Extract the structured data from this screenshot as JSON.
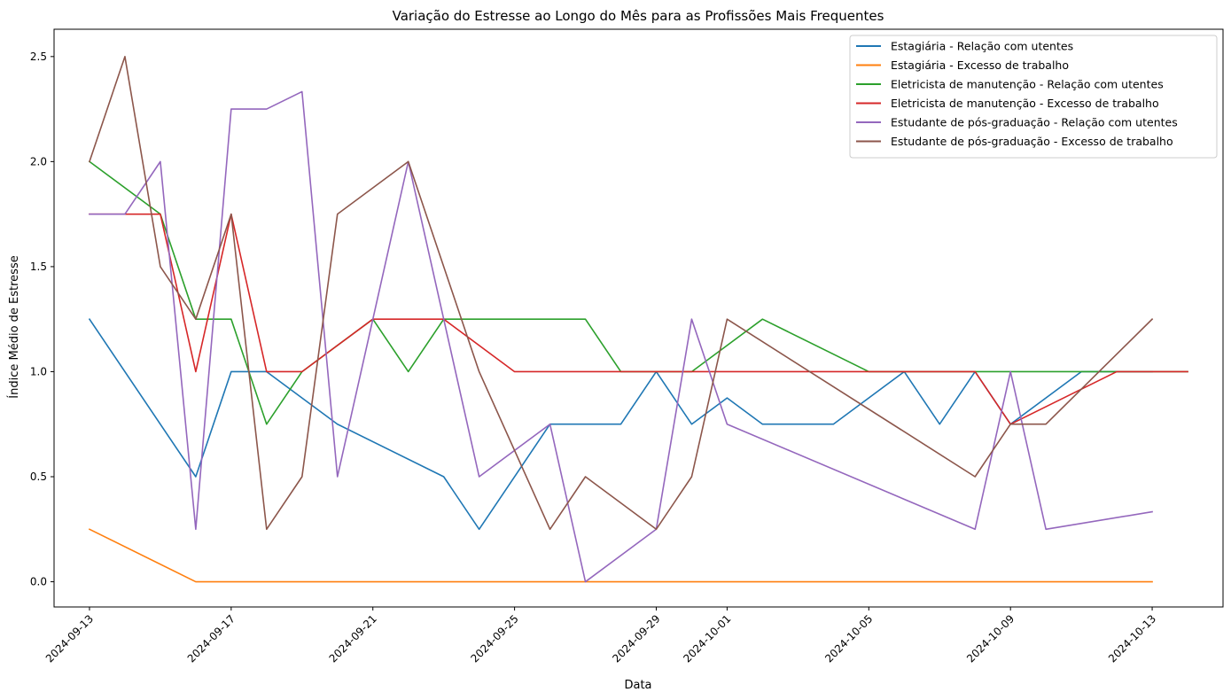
{
  "chart_data": {
    "type": "line",
    "title": "Variação do Estresse ao Longo do Mês para as Profissões Mais Frequentes",
    "xlabel": "Data",
    "ylabel": "Índice Médio de Estresse",
    "xlim": [
      "2024-09-12",
      "2024-10-15"
    ],
    "ylim": [
      -0.12,
      2.63
    ],
    "x_ticks": [
      "2024-09-13",
      "2024-09-17",
      "2024-09-21",
      "2024-09-25",
      "2024-09-29",
      "2024-10-01",
      "2024-10-05",
      "2024-10-09",
      "2024-10-13"
    ],
    "y_ticks": [
      0.0,
      0.5,
      1.0,
      1.5,
      2.0,
      2.5
    ],
    "y_tick_labels": [
      "0.0",
      "0.5",
      "1.0",
      "1.5",
      "2.0",
      "2.5"
    ],
    "grid": false,
    "legend_position": "top-right",
    "series": [
      {
        "name": "Estagiária - Relação com utentes",
        "color": "#1f77b4",
        "points": [
          [
            "2024-09-13",
            1.25
          ],
          [
            "2024-09-16",
            0.5
          ],
          [
            "2024-09-17",
            1.0
          ],
          [
            "2024-09-18",
            1.0
          ],
          [
            "2024-09-20",
            0.75
          ],
          [
            "2024-09-23",
            0.5
          ],
          [
            "2024-09-24",
            0.25
          ],
          [
            "2024-09-26",
            0.75
          ],
          [
            "2024-09-28",
            0.75
          ],
          [
            "2024-09-29",
            1.0
          ],
          [
            "2024-09-30",
            0.75
          ],
          [
            "2024-10-01",
            0.875
          ],
          [
            "2024-10-02",
            0.75
          ],
          [
            "2024-10-04",
            0.75
          ],
          [
            "2024-10-06",
            1.0
          ],
          [
            "2024-10-07",
            0.75
          ],
          [
            "2024-10-08",
            1.0
          ],
          [
            "2024-10-09",
            0.75
          ],
          [
            "2024-10-11",
            1.0
          ],
          [
            "2024-10-13",
            1.0
          ]
        ]
      },
      {
        "name": "Estagiária - Excesso de trabalho",
        "color": "#ff7f0e",
        "points": [
          [
            "2024-09-13",
            0.25
          ],
          [
            "2024-09-16",
            0.0
          ],
          [
            "2024-10-13",
            0.0
          ]
        ]
      },
      {
        "name": "Eletricista de manutenção  - Relação com utentes",
        "color": "#2ca02c",
        "points": [
          [
            "2024-09-13",
            2.0
          ],
          [
            "2024-09-15",
            1.75
          ],
          [
            "2024-09-16",
            1.25
          ],
          [
            "2024-09-17",
            1.25
          ],
          [
            "2024-09-18",
            0.75
          ],
          [
            "2024-09-19",
            1.0
          ],
          [
            "2024-09-21",
            1.25
          ],
          [
            "2024-09-22",
            1.0
          ],
          [
            "2024-09-23",
            1.25
          ],
          [
            "2024-09-27",
            1.25
          ],
          [
            "2024-09-28",
            1.0
          ],
          [
            "2024-09-30",
            1.0
          ],
          [
            "2024-10-02",
            1.25
          ],
          [
            "2024-10-05",
            1.0
          ],
          [
            "2024-10-14",
            1.0
          ]
        ]
      },
      {
        "name": "Eletricista de manutenção  - Excesso de trabalho",
        "color": "#d62728",
        "points": [
          [
            "2024-09-13",
            1.75
          ],
          [
            "2024-09-15",
            1.75
          ],
          [
            "2024-09-16",
            1.0
          ],
          [
            "2024-09-17",
            1.75
          ],
          [
            "2024-09-18",
            1.0
          ],
          [
            "2024-09-19",
            1.0
          ],
          [
            "2024-09-21",
            1.25
          ],
          [
            "2024-09-23",
            1.25
          ],
          [
            "2024-09-25",
            1.0
          ],
          [
            "2024-10-08",
            1.0
          ],
          [
            "2024-10-09",
            0.75
          ],
          [
            "2024-10-12",
            1.0
          ],
          [
            "2024-10-14",
            1.0
          ]
        ]
      },
      {
        "name": "Estudante de pós-graduação  - Relação com utentes",
        "color": "#9467bd",
        "points": [
          [
            "2024-09-13",
            1.75
          ],
          [
            "2024-09-14",
            1.75
          ],
          [
            "2024-09-15",
            2.0
          ],
          [
            "2024-09-16",
            0.25
          ],
          [
            "2024-09-17",
            2.25
          ],
          [
            "2024-09-18",
            2.25
          ],
          [
            "2024-09-19",
            2.333
          ],
          [
            "2024-09-20",
            0.5
          ],
          [
            "2024-09-21",
            1.25
          ],
          [
            "2024-09-22",
            2.0
          ],
          [
            "2024-09-23",
            1.25
          ],
          [
            "2024-09-24",
            0.5
          ],
          [
            "2024-09-26",
            0.75
          ],
          [
            "2024-09-27",
            0.0
          ],
          [
            "2024-09-29",
            0.25
          ],
          [
            "2024-09-30",
            1.25
          ],
          [
            "2024-10-01",
            0.75
          ],
          [
            "2024-10-08",
            0.25
          ],
          [
            "2024-10-09",
            1.0
          ],
          [
            "2024-10-10",
            0.25
          ],
          [
            "2024-10-13",
            0.333
          ]
        ]
      },
      {
        "name": "Estudante de pós-graduação  - Excesso de trabalho",
        "color": "#8c564b",
        "points": [
          [
            "2024-09-13",
            2.0
          ],
          [
            "2024-09-14",
            2.5
          ],
          [
            "2024-09-15",
            1.5
          ],
          [
            "2024-09-16",
            1.25
          ],
          [
            "2024-09-17",
            1.75
          ],
          [
            "2024-09-18",
            0.25
          ],
          [
            "2024-09-19",
            0.5
          ],
          [
            "2024-09-20",
            1.75
          ],
          [
            "2024-09-22",
            2.0
          ],
          [
            "2024-09-24",
            1.0
          ],
          [
            "2024-09-26",
            0.25
          ],
          [
            "2024-09-27",
            0.5
          ],
          [
            "2024-09-29",
            0.25
          ],
          [
            "2024-09-30",
            0.5
          ],
          [
            "2024-10-01",
            1.25
          ],
          [
            "2024-10-08",
            0.5
          ],
          [
            "2024-10-09",
            0.75
          ],
          [
            "2024-10-10",
            0.75
          ],
          [
            "2024-10-13",
            1.25
          ]
        ]
      }
    ]
  }
}
